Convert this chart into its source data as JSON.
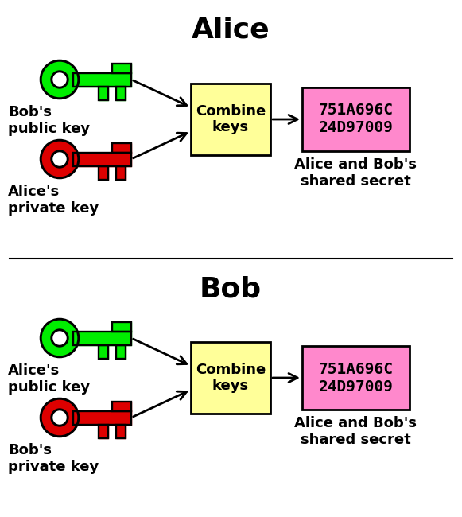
{
  "bg_color": "#ffffff",
  "panels": [
    {
      "title": "Alice",
      "key1_color": "#00ee00",
      "key1_outline": "#000000",
      "key1_label": "Bob's\npublic key",
      "key2_color": "#dd0000",
      "key2_outline": "#000000",
      "key2_label": "Alice's\nprivate key",
      "combine_box_color": "#ffff99",
      "secret_box_color": "#ff88cc",
      "secret_text": "751A696C\n24D97009",
      "shared_label": "Alice and Bob's\nshared secret"
    },
    {
      "title": "Bob",
      "key1_color": "#00ee00",
      "key1_outline": "#000000",
      "key1_label": "Alice's\npublic key",
      "key2_color": "#dd0000",
      "key2_outline": "#000000",
      "key2_label": "Bob's\nprivate key",
      "combine_box_color": "#ffff99",
      "secret_box_color": "#ff88cc",
      "secret_text": "751A696C\n24D97009",
      "shared_label": "Alice and Bob's\nshared secret"
    }
  ]
}
